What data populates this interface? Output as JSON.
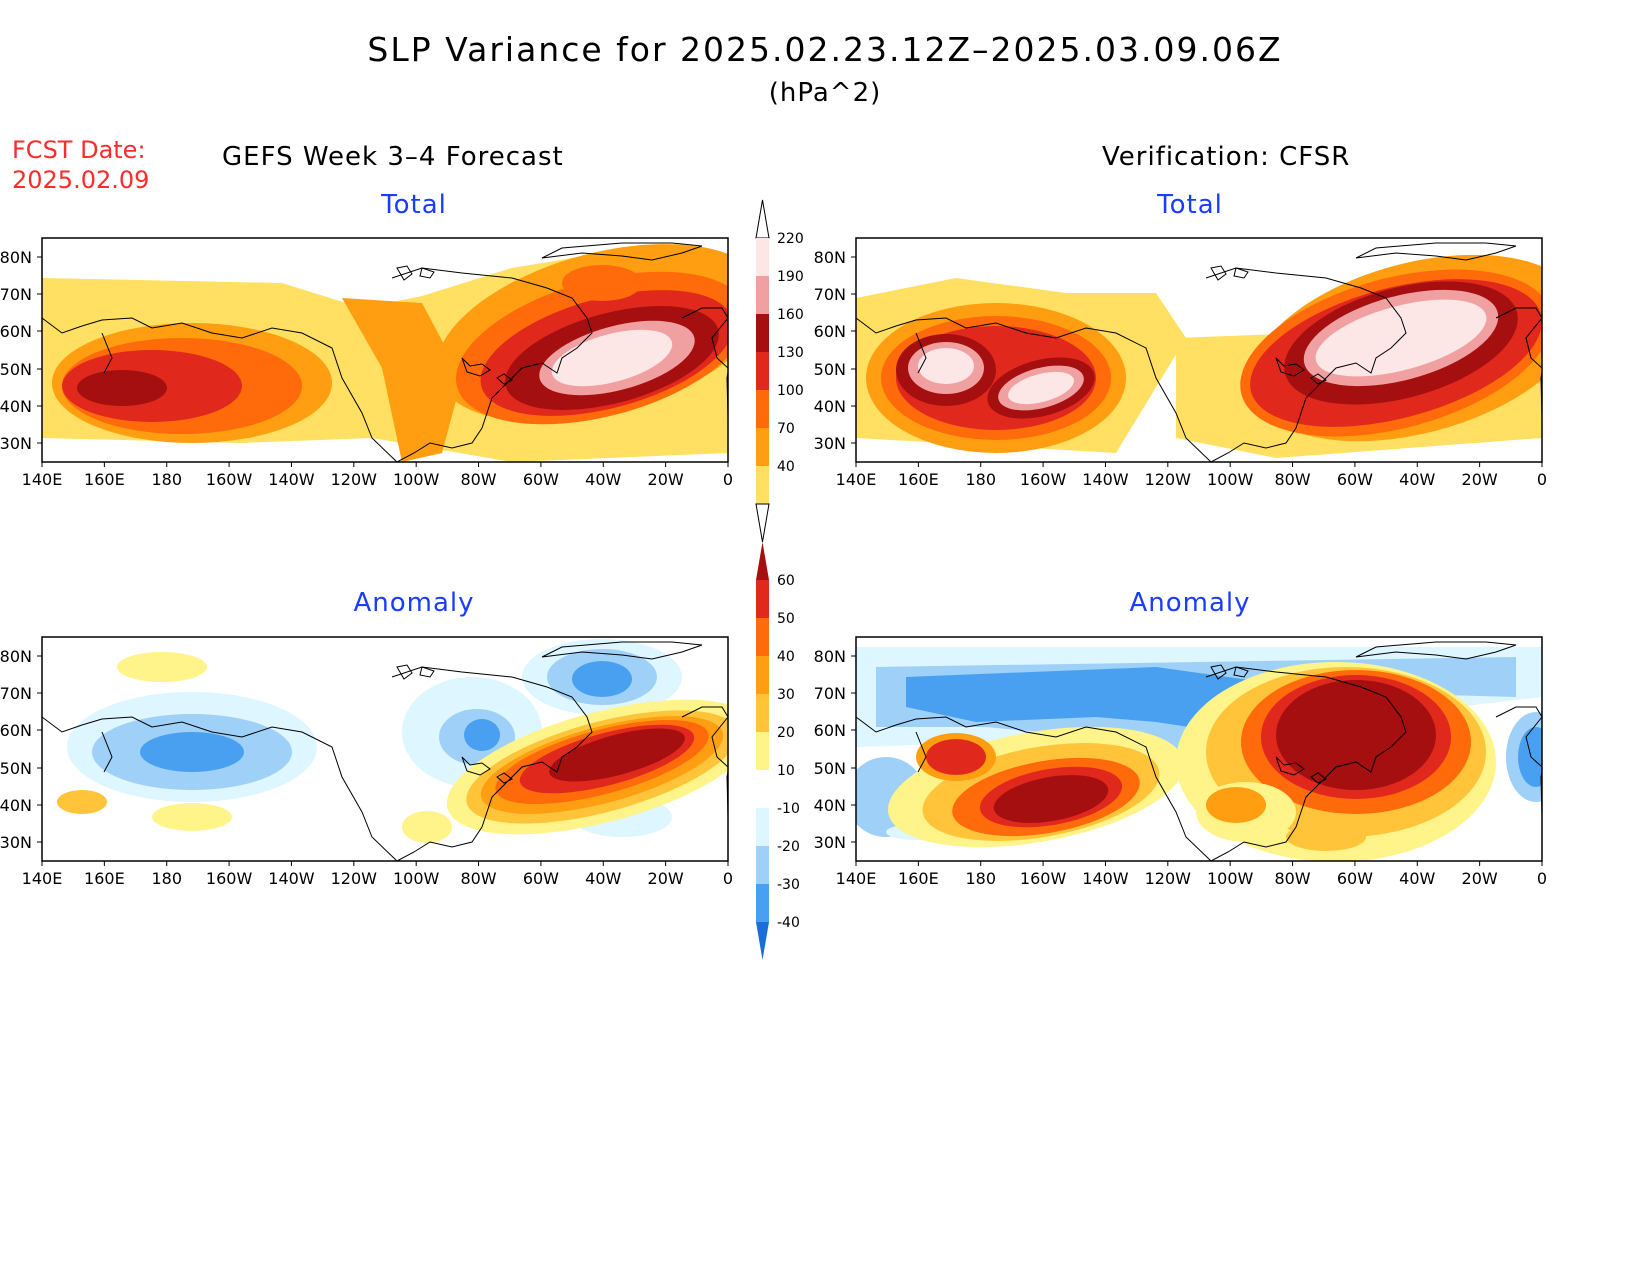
{
  "title": "SLP Variance for 2025.02.23.12Z–2025.03.09.06Z",
  "units": "(hPa^2)",
  "fcst_date_label": "FCST Date:",
  "fcst_date_value": "2025.02.09",
  "left_header": "GEFS Week 3–4 Forecast",
  "right_header": "Verification: CFSR",
  "panels": {
    "tl": {
      "title": "Total"
    },
    "tr": {
      "title": "Total"
    },
    "bl": {
      "title": "Anomaly"
    },
    "br": {
      "title": "Anomaly"
    }
  },
  "lat_labels": [
    "80N",
    "70N",
    "60N",
    "50N",
    "40N",
    "30N"
  ],
  "lon_labels": [
    "140E",
    "160E",
    "180",
    "160W",
    "140W",
    "120W",
    "100W",
    "80W",
    "60W",
    "40W",
    "20W",
    "0"
  ],
  "total_colorbar": {
    "labels": [
      "220",
      "190",
      "160",
      "130",
      "100",
      "70",
      "40"
    ],
    "colors": [
      "#fde6e6",
      "#f0a0a0",
      "#a50f0f",
      "#e0281c",
      "#ff6a0a",
      "#ff9e10",
      "#ffe062"
    ]
  },
  "anomaly_colorbar": {
    "labels": [
      "60",
      "50",
      "40",
      "30",
      "20",
      "10",
      "-10",
      "-20",
      "-30",
      "-40"
    ],
    "colors": [
      "#a50f0f",
      "#e0281c",
      "#ff6a0a",
      "#ff9e10",
      "#ffc43a",
      "#fff48a",
      "#ffffff",
      "#ddf6ff",
      "#9fd0f8",
      "#4aa0f0",
      "#1a6ed8"
    ]
  }
}
